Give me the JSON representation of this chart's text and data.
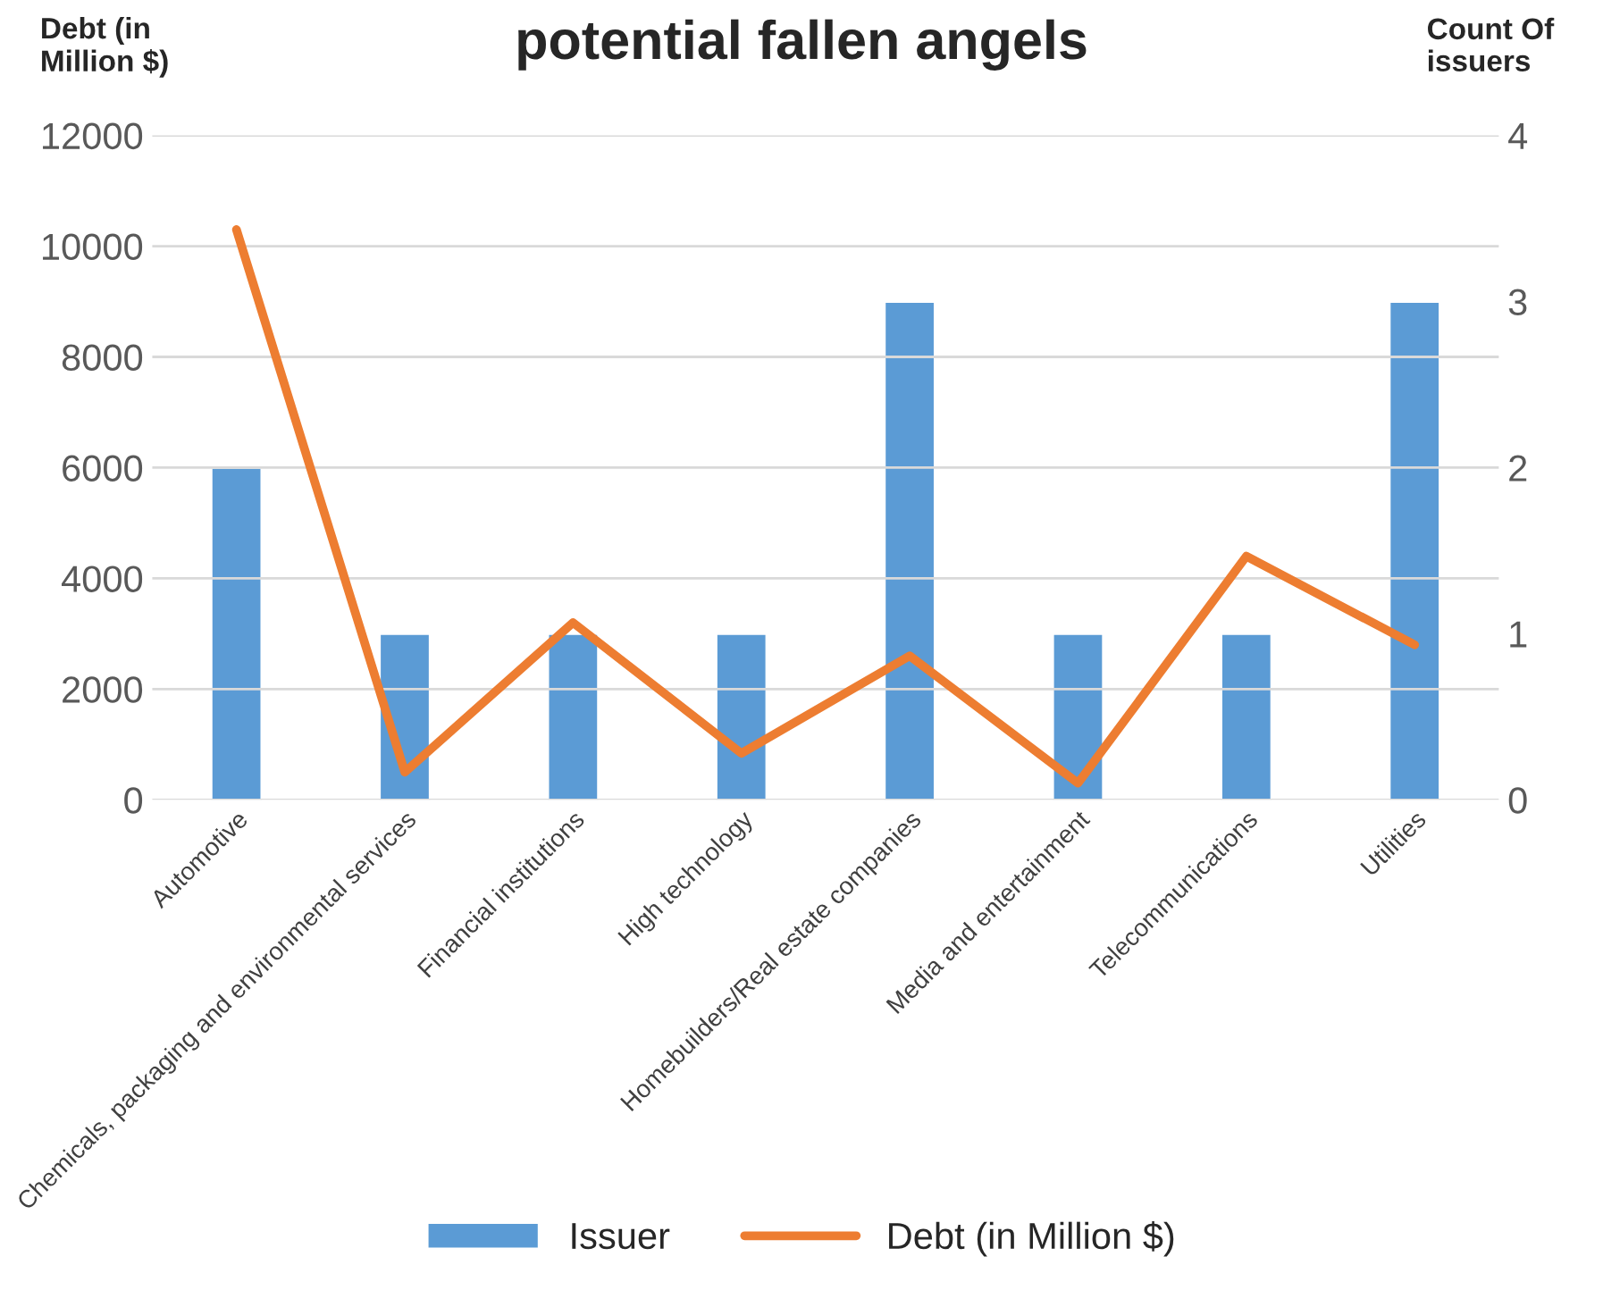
{
  "chart_data": {
    "type": "bar",
    "title": "potential fallen angels",
    "ylabel": "Debt (in Million $)",
    "y2label": "Count Of issuers",
    "categories": [
      "Automotive",
      "Chemicals, packaging and environmental services",
      "Financial institutions",
      "High technology",
      "Homebuilders/Real estate companies",
      "Media and entertainment",
      "Telecommunications",
      "Utilities"
    ],
    "series": [
      {
        "name": "Issuer",
        "axis": "y2",
        "color": "#5b9bd5",
        "values": [
          2,
          1,
          1,
          1,
          3,
          1,
          1,
          3
        ]
      },
      {
        "name": "Debt (in Million $)",
        "type": "line",
        "axis": "y",
        "color": "#ed7d31",
        "values": [
          10300,
          500,
          3200,
          840,
          2600,
          300,
          4400,
          2800
        ]
      }
    ],
    "ylim": [
      0,
      12000
    ],
    "yticks": [
      0,
      2000,
      4000,
      6000,
      8000,
      10000,
      12000
    ],
    "y2lim": [
      0,
      4
    ],
    "y2ticks": [
      0,
      1,
      2,
      3,
      4
    ],
    "grid": "y",
    "legend": "bottom",
    "marker": "none",
    "line_style": "solid"
  }
}
